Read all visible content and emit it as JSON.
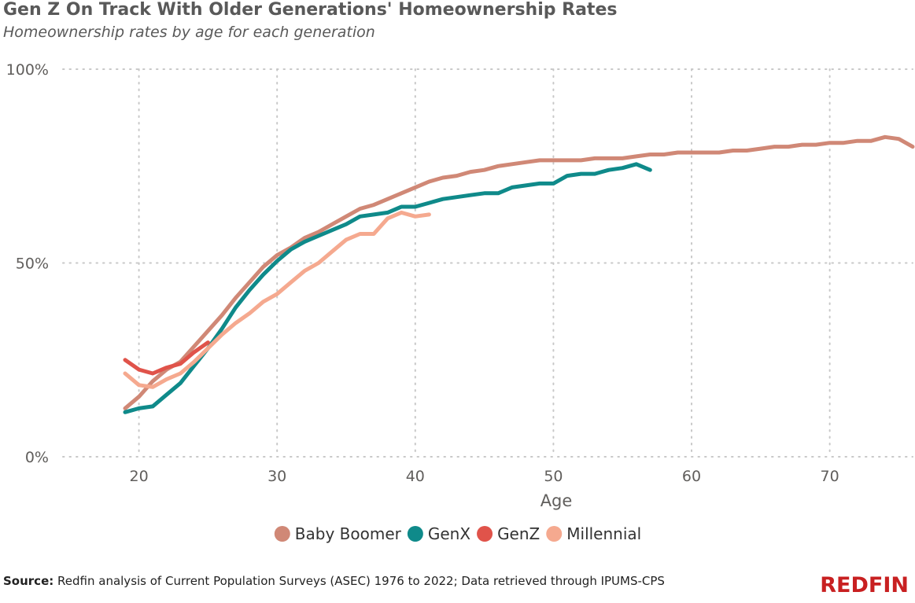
{
  "chart_data": {
    "type": "line",
    "title": "Gen Z On Track With Older Generations' Homeownership Rates",
    "subtitle": "Homeownership rates by age for each generation",
    "xlabel": "Age",
    "ylabel": "",
    "xlim": [
      14.5,
      76
    ],
    "ylim": [
      0,
      100
    ],
    "xticks": [
      20,
      30,
      40,
      50,
      60,
      70
    ],
    "yticks": [
      {
        "value": 0,
        "label": "0%"
      },
      {
        "value": 50,
        "label": "50%"
      },
      {
        "value": 100,
        "label": "100%"
      }
    ],
    "grid": true,
    "legend_position": "bottom-center",
    "series": [
      {
        "name": "Baby Boomer",
        "color": "#d08876",
        "x": [
          19,
          20,
          21,
          22,
          23,
          24,
          25,
          26,
          27,
          28,
          29,
          30,
          31,
          32,
          33,
          34,
          35,
          36,
          37,
          38,
          39,
          40,
          41,
          42,
          43,
          44,
          45,
          46,
          47,
          48,
          49,
          50,
          51,
          52,
          53,
          54,
          55,
          56,
          57,
          58,
          59,
          60,
          61,
          62,
          63,
          64,
          65,
          66,
          67,
          68,
          69,
          70,
          71,
          72,
          73,
          74,
          75,
          76
        ],
        "y": [
          12.5,
          15.5,
          19.5,
          22.5,
          24.5,
          28.5,
          32.5,
          36.5,
          41,
          45,
          49,
          52,
          54,
          56.5,
          58,
          60,
          62,
          64,
          65,
          66.5,
          68,
          69.5,
          71,
          72,
          72.5,
          73.5,
          74,
          75,
          75.5,
          76,
          76.5,
          76.5,
          76.5,
          76.5,
          77,
          77,
          77,
          77.5,
          78,
          78,
          78.5,
          78.5,
          78.5,
          78.5,
          79,
          79,
          79.5,
          80,
          80,
          80.5,
          80.5,
          81,
          81,
          81.5,
          81.5,
          82.5,
          82,
          80
        ]
      },
      {
        "name": "GenX",
        "color": "#0f8a8a",
        "x": [
          19,
          20,
          21,
          22,
          23,
          24,
          25,
          26,
          27,
          28,
          29,
          30,
          31,
          32,
          33,
          34,
          35,
          36,
          37,
          38,
          39,
          40,
          41,
          42,
          43,
          44,
          45,
          46,
          47,
          48,
          49,
          50,
          51,
          52,
          53,
          54,
          55,
          56,
          57
        ],
        "y": [
          11.5,
          12.5,
          13,
          16,
          19,
          23.5,
          28,
          33,
          38.5,
          43,
          47,
          50.5,
          53.5,
          55.5,
          57,
          58.5,
          60,
          62,
          62.5,
          63,
          64.5,
          64.5,
          65.5,
          66.5,
          67,
          67.5,
          68,
          68,
          69.5,
          70,
          70.5,
          70.5,
          72.5,
          73,
          73,
          74,
          74.5,
          75.5,
          74
        ]
      },
      {
        "name": "GenZ",
        "color": "#e0534a",
        "x": [
          19,
          20,
          21,
          22,
          23,
          24,
          25
        ],
        "y": [
          25,
          22.5,
          21.5,
          23,
          24,
          27,
          29.5
        ]
      },
      {
        "name": "Millennial",
        "color": "#f5a98f",
        "x": [
          19,
          20,
          21,
          22,
          23,
          24,
          25,
          26,
          27,
          28,
          29,
          30,
          31,
          32,
          33,
          34,
          35,
          36,
          37,
          38,
          39,
          40,
          41
        ],
        "y": [
          21.5,
          18.5,
          18,
          20,
          21.5,
          24.5,
          28,
          31.5,
          34.5,
          37,
          40,
          42,
          45,
          48,
          50,
          53,
          56,
          57.5,
          57.5,
          61.5,
          63,
          62,
          62.5
        ]
      }
    ]
  },
  "footer": {
    "source_label": "Source:",
    "source_text": "Redfin analysis of Current Population Surveys (ASEC) 1976 to 2022; Data retrieved through IPUMS-CPS",
    "brand": "REDFIN"
  }
}
